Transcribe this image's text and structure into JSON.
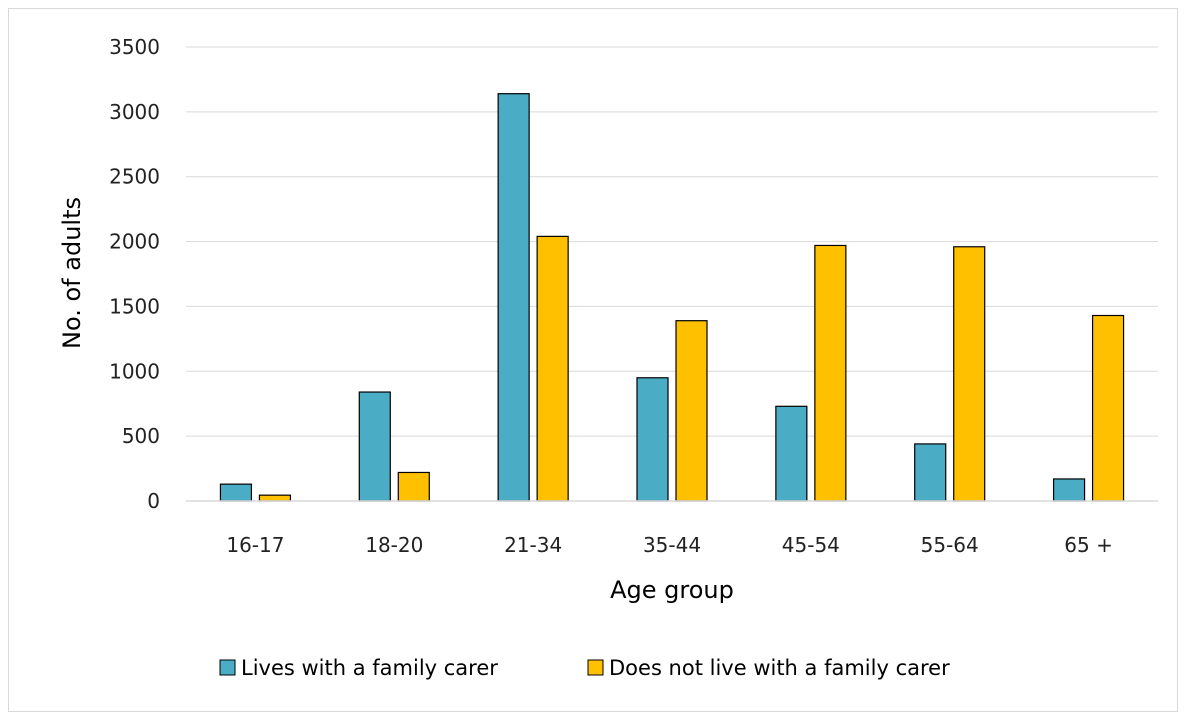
{
  "chart_data": {
    "type": "bar",
    "title": "",
    "xlabel": "Age group",
    "ylabel": "No. of adults",
    "categories": [
      "16-17",
      "18-20",
      "21-34",
      "35-44",
      "45-54",
      "55-64",
      "65 +"
    ],
    "series": [
      {
        "name": "Lives with a family carer",
        "color": "#4bacc6",
        "values": [
          130,
          840,
          3140,
          950,
          730,
          440,
          170
        ]
      },
      {
        "name": "Does not live with a family carer",
        "color": "#ffc000",
        "values": [
          45,
          220,
          2040,
          1390,
          1970,
          1960,
          1430
        ]
      }
    ],
    "ylim": [
      0,
      3500
    ],
    "yticks": [
      0,
      500,
      1000,
      1500,
      2000,
      2500,
      3000,
      3500
    ],
    "grid": true,
    "legend": "bottom"
  }
}
